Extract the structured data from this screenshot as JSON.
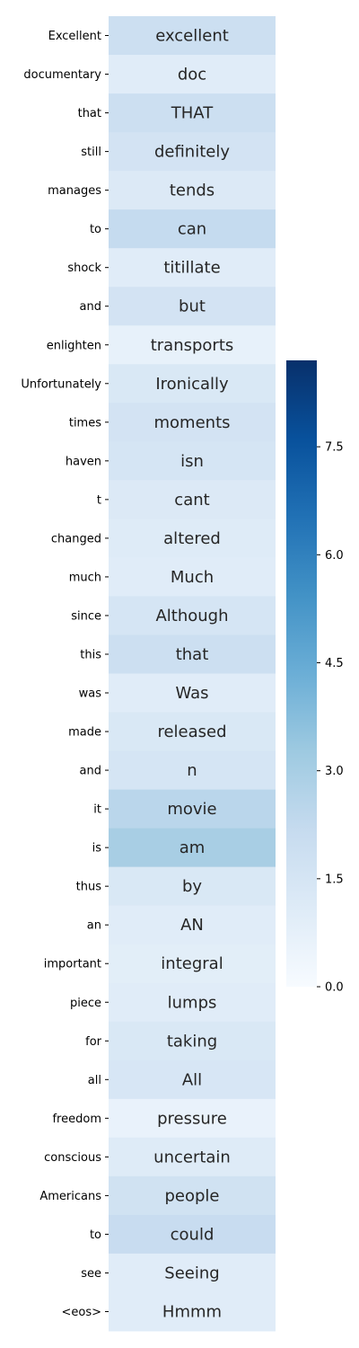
{
  "chart_data": {
    "type": "heatmap",
    "title": "",
    "xlabel": "",
    "ylabel": "",
    "rows": [
      {
        "label": "Excellent",
        "text": "excellent",
        "value": 1.9
      },
      {
        "label": "documentary",
        "text": "doc",
        "value": 1.0
      },
      {
        "label": "that",
        "text": "THAT",
        "value": 1.9
      },
      {
        "label": "still",
        "text": "definitely",
        "value": 1.6
      },
      {
        "label": "manages",
        "text": "tends",
        "value": 1.2
      },
      {
        "label": "to",
        "text": "can",
        "value": 2.2
      },
      {
        "label": "shock",
        "text": "titillate",
        "value": 1.0
      },
      {
        "label": "and",
        "text": "but",
        "value": 1.6
      },
      {
        "label": "enlighten",
        "text": "transports",
        "value": 0.7
      },
      {
        "label": "Unfortunately",
        "text": "Ironically",
        "value": 1.3
      },
      {
        "label": "times",
        "text": "moments",
        "value": 1.6
      },
      {
        "label": "haven",
        "text": "isn",
        "value": 1.5
      },
      {
        "label": "t",
        "text": "cant",
        "value": 1.2
      },
      {
        "label": "changed",
        "text": "altered",
        "value": 1.1
      },
      {
        "label": "much",
        "text": "Much",
        "value": 1.0
      },
      {
        "label": "since",
        "text": "Although",
        "value": 1.5
      },
      {
        "label": "this",
        "text": "that",
        "value": 1.9
      },
      {
        "label": "was",
        "text": "Was",
        "value": 1.0
      },
      {
        "label": "made",
        "text": "released",
        "value": 1.3
      },
      {
        "label": "and",
        "text": "n",
        "value": 1.5
      },
      {
        "label": "it",
        "text": "movie",
        "value": 2.5
      },
      {
        "label": "is",
        "text": "am",
        "value": 3.0
      },
      {
        "label": "thus",
        "text": "by",
        "value": 1.3
      },
      {
        "label": "an",
        "text": "AN",
        "value": 1.0
      },
      {
        "label": "important",
        "text": "integral",
        "value": 0.9
      },
      {
        "label": "piece",
        "text": "lumps",
        "value": 1.0
      },
      {
        "label": "for",
        "text": "taking",
        "value": 1.3
      },
      {
        "label": "all",
        "text": "All",
        "value": 1.4
      },
      {
        "label": "freedom",
        "text": "pressure",
        "value": 0.6
      },
      {
        "label": "conscious",
        "text": "uncertain",
        "value": 1.1
      },
      {
        "label": "Americans",
        "text": "people",
        "value": 1.7
      },
      {
        "label": "to",
        "text": "could",
        "value": 2.1
      },
      {
        "label": "see",
        "text": "Seeing",
        "value": 1.0
      },
      {
        "label": "<eos>",
        "text": "Hmmm",
        "value": 1.0
      }
    ],
    "colorbar": {
      "vmin": 0,
      "vmax": 8.7,
      "ticks": [
        0.0,
        1.5,
        3.0,
        4.5,
        6.0,
        7.5
      ],
      "tick_labels": [
        "0.0",
        "1.5",
        "3.0",
        "4.5",
        "6.0",
        "7.5"
      ],
      "colormap": "Blues"
    }
  }
}
